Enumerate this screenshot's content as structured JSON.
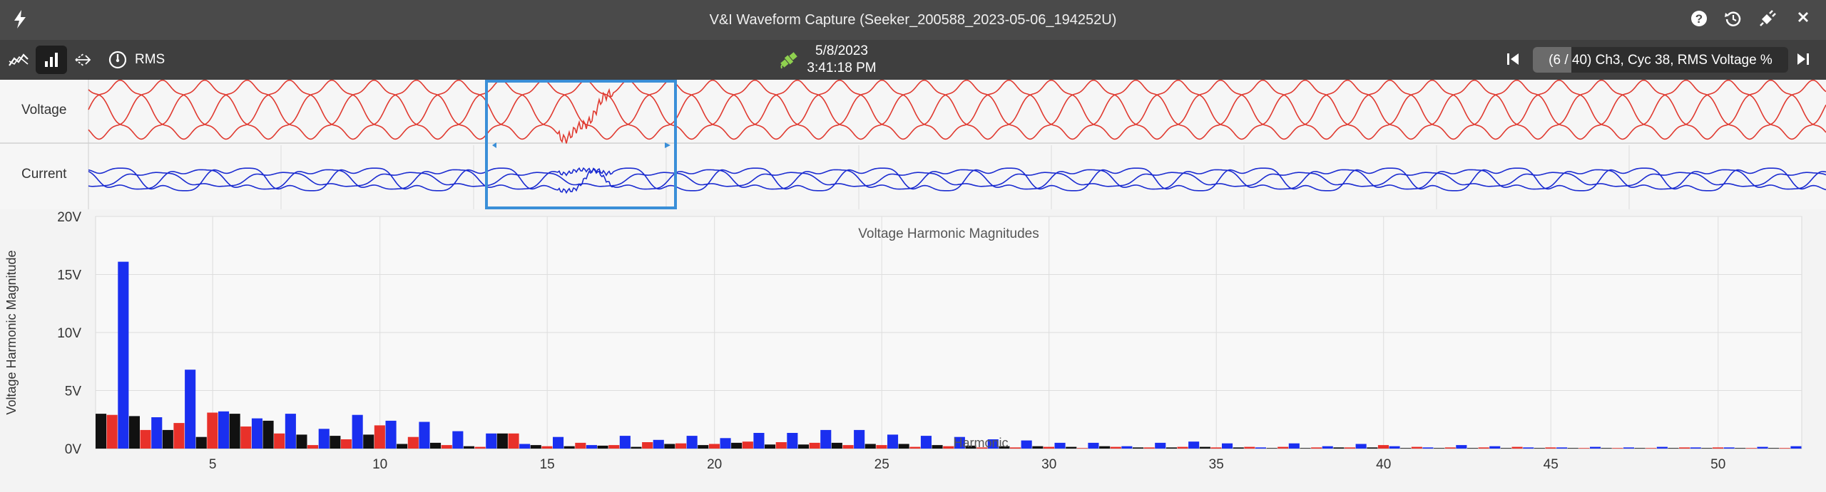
{
  "window": {
    "title": "V&I Waveform Capture (Seeker_200588_2023-05-06_194252U)"
  },
  "toolbar": {
    "view_label": "RMS",
    "date": "5/8/2023",
    "time": "3:41:18 PM",
    "record_text": "(6 / 40) Ch3, Cyc 38, RMS Voltage %",
    "record_progress": 0.15
  },
  "waveforms": {
    "voltage_label": "Voltage",
    "current_label": "Current"
  },
  "chart_data": {
    "type": "bar",
    "title": "Voltage Harmonic Magnitudes",
    "xlabel": "Harmonic",
    "ylabel": "Voltage Harmonic Magnitude",
    "ylim": [
      0,
      20
    ],
    "y_ticks": [
      "0V",
      "5V",
      "10V",
      "15V",
      "20V"
    ],
    "x_ticks": [
      5,
      10,
      15,
      20,
      25,
      30,
      35,
      40,
      45,
      50
    ],
    "harmonics": [
      2,
      3,
      4,
      5,
      6,
      7,
      8,
      9,
      10,
      11,
      12,
      13,
      14,
      15,
      16,
      17,
      18,
      19,
      20,
      21,
      22,
      23,
      24,
      25,
      26,
      27,
      28,
      29,
      30,
      31,
      32,
      33,
      34,
      35,
      36,
      37,
      38,
      39,
      40,
      41,
      42,
      43,
      44,
      45,
      46,
      47,
      48,
      49,
      50,
      51,
      52
    ],
    "colors": {
      "black": "#111111",
      "red": "#e8312a",
      "blue": "#1a2ff0"
    },
    "series": [
      {
        "values": [
          3.0,
          2.8,
          1.6,
          1.0,
          3.0,
          2.4,
          1.2,
          1.1,
          1.2,
          0.4,
          0.5,
          0.2,
          1.3,
          0.3,
          0.2,
          0.25,
          0.15,
          0.4,
          0.3,
          0.5,
          0.35,
          0.35,
          0.5,
          0.4,
          0.4,
          0.3,
          0.25,
          0.2,
          0.2,
          0.15,
          0.2,
          0.1,
          0.1,
          0.15,
          0.1,
          0.05,
          0.05,
          0.1,
          0.1,
          0.05,
          0.05,
          0.05,
          0.05,
          0.05,
          0.05,
          0.05,
          0.05,
          0.05,
          0.05,
          0.05,
          0.05
        ]
      },
      {
        "values": [
          2.9,
          1.6,
          2.2,
          3.1,
          1.9,
          1.3,
          0.3,
          0.8,
          2.0,
          1.0,
          0.3,
          0.15,
          1.3,
          0.2,
          0.5,
          0.3,
          0.55,
          0.45,
          0.4,
          0.6,
          0.55,
          0.5,
          0.3,
          0.3,
          0.15,
          0.2,
          0.1,
          0.1,
          0.15,
          0.05,
          0.15,
          0.1,
          0.15,
          0.1,
          0.15,
          0.15,
          0.1,
          0.1,
          0.3,
          0.15,
          0.1,
          0.1,
          0.15,
          0.1,
          0.05,
          0.05,
          0.05,
          0.1,
          0.1,
          0.05,
          0.05
        ]
      },
      {
        "values": [
          16.1,
          2.7,
          6.8,
          3.2,
          2.6,
          3.0,
          1.7,
          2.9,
          2.4,
          2.3,
          1.5,
          1.3,
          0.4,
          1.0,
          0.3,
          1.1,
          0.75,
          1.1,
          0.9,
          1.35,
          1.35,
          1.6,
          1.6,
          1.2,
          1.1,
          1.0,
          0.8,
          0.7,
          0.5,
          0.5,
          0.2,
          0.5,
          0.6,
          0.45,
          0.1,
          0.45,
          0.2,
          0.4,
          0.2,
          0.1,
          0.3,
          0.2,
          0.1,
          0.1,
          0.15,
          0.1,
          0.15,
          0.1,
          0.1,
          0.15,
          0.2
        ]
      }
    ]
  }
}
